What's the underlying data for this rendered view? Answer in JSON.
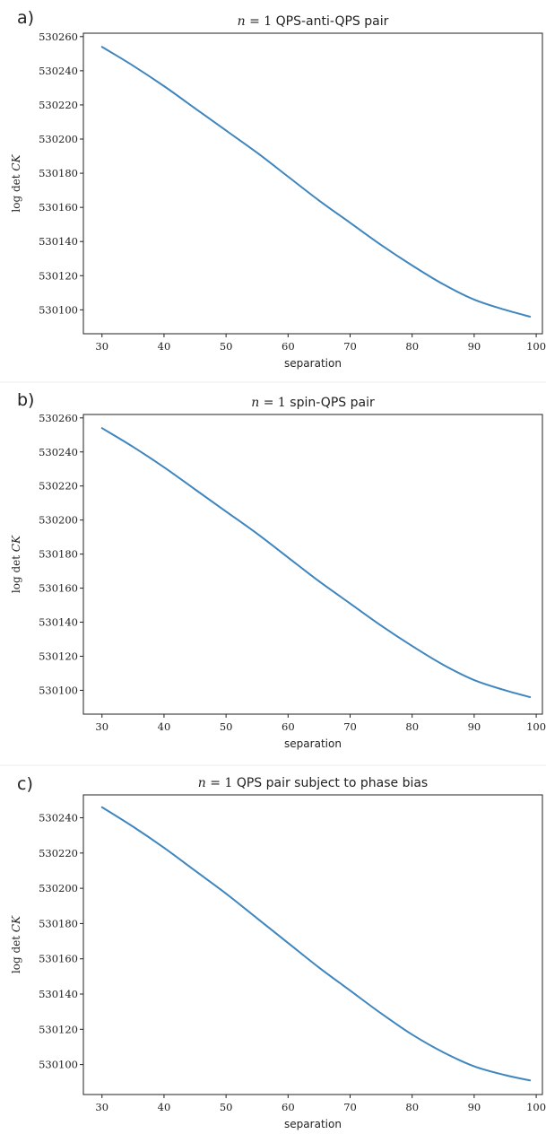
{
  "chart_data": [
    {
      "type": "line",
      "panel_label": "a)",
      "title_prefix": "n = 1",
      "title_suffix": "QPS-anti-QPS pair",
      "xlabel": "separation",
      "ylabel": "log det CK",
      "xlim": [
        27,
        101
      ],
      "ylim": [
        530086,
        530262
      ],
      "xticks": [
        30,
        40,
        50,
        60,
        70,
        80,
        90,
        100
      ],
      "yticks": [
        530100,
        530120,
        530140,
        530160,
        530180,
        530200,
        530220,
        530240,
        530260
      ],
      "series": [
        {
          "color": "#3f86bf",
          "x": [
            30,
            35,
            40,
            45,
            50,
            55,
            60,
            65,
            70,
            75,
            80,
            85,
            90,
            95,
            99
          ],
          "y": [
            530254,
            530243,
            530231,
            530218,
            530205,
            530192,
            530178,
            530164,
            530151,
            530138,
            530126,
            530115,
            530106,
            530100,
            530096
          ]
        }
      ]
    },
    {
      "type": "line",
      "panel_label": "b)",
      "title_prefix": "n = 1",
      "title_suffix": "spin-QPS pair",
      "xlabel": "separation",
      "ylabel": "log det CK",
      "xlim": [
        27,
        101
      ],
      "ylim": [
        530086,
        530262
      ],
      "xticks": [
        30,
        40,
        50,
        60,
        70,
        80,
        90,
        100
      ],
      "yticks": [
        530100,
        530120,
        530140,
        530160,
        530180,
        530200,
        530220,
        530240,
        530260
      ],
      "series": [
        {
          "color": "#3f86bf",
          "x": [
            30,
            35,
            40,
            45,
            50,
            55,
            60,
            65,
            70,
            75,
            80,
            85,
            90,
            95,
            99
          ],
          "y": [
            530254,
            530243,
            530231,
            530218,
            530205,
            530192,
            530178,
            530164,
            530151,
            530138,
            530126,
            530115,
            530106,
            530100,
            530096
          ]
        }
      ]
    },
    {
      "type": "line",
      "panel_label": "c)",
      "title_prefix": "n = 1",
      "title_suffix": "QPS pair subject to phase bias",
      "xlabel": "separation",
      "ylabel": "log det CK",
      "xlim": [
        27,
        101
      ],
      "ylim": [
        530083,
        530253
      ],
      "xticks": [
        30,
        40,
        50,
        60,
        70,
        80,
        90,
        100
      ],
      "yticks": [
        530100,
        530120,
        530140,
        530160,
        530180,
        530200,
        530220,
        530240
      ],
      "series": [
        {
          "color": "#3f86bf",
          "x": [
            30,
            35,
            40,
            45,
            50,
            55,
            60,
            65,
            70,
            75,
            80,
            85,
            90,
            95,
            99
          ],
          "y": [
            530246,
            530235,
            530223,
            530210,
            530197,
            530183,
            530169,
            530155,
            530142,
            530129,
            530117,
            530107,
            530099,
            530094,
            530091
          ]
        }
      ]
    }
  ]
}
